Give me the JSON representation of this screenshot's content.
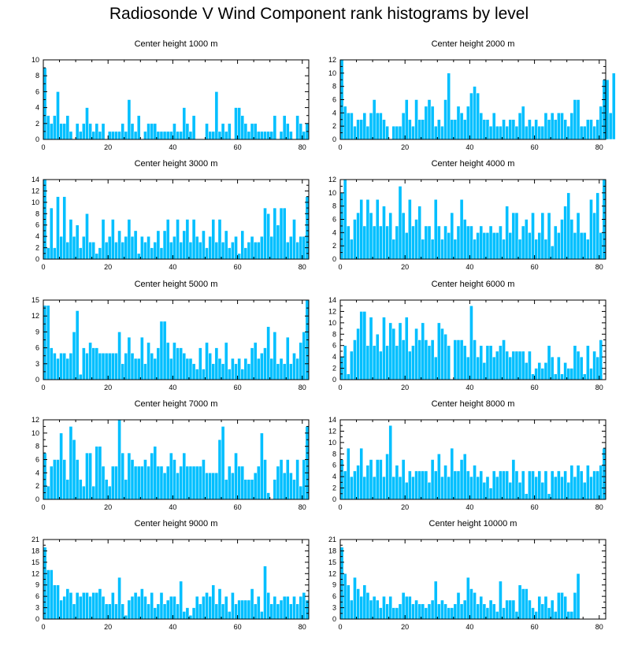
{
  "title": "Radiosonde V Wind Component rank histograms by level",
  "bar_color": "#00bfff",
  "bar_edge_color": "#ffffff",
  "axis_color": "#000000",
  "chart_data": [
    {
      "type": "bar",
      "title": "Center height 1000 m",
      "xlim": [
        0,
        82
      ],
      "ylim": [
        0,
        10
      ],
      "xticks": [
        0,
        20,
        40,
        60,
        80
      ],
      "yticks": [
        0,
        2,
        4,
        6,
        8,
        10
      ],
      "values": [
        9,
        3,
        2,
        3,
        6,
        2,
        2,
        3,
        1,
        0,
        2,
        1,
        2,
        4,
        2,
        1,
        2,
        1,
        2,
        0,
        1,
        1,
        1,
        1,
        2,
        1,
        5,
        2,
        1,
        3,
        0,
        1,
        2,
        2,
        2,
        1,
        1,
        1,
        1,
        1,
        2,
        1,
        1,
        4,
        2,
        1,
        3,
        0,
        0,
        0,
        2,
        1,
        1,
        6,
        1,
        2,
        1,
        2,
        0,
        4,
        4,
        3,
        2,
        1,
        2,
        2,
        1,
        1,
        1,
        1,
        1,
        3,
        0,
        1,
        3,
        2,
        1,
        0,
        3,
        2,
        1,
        2
      ]
    },
    {
      "type": "bar",
      "title": "Center height 2000 m",
      "xlim": [
        0,
        82
      ],
      "ylim": [
        0,
        12
      ],
      "xticks": [
        0,
        20,
        40,
        60,
        80
      ],
      "yticks": [
        0,
        2,
        4,
        6,
        8,
        10,
        12
      ],
      "values": [
        12,
        5,
        4,
        4,
        2,
        3,
        3,
        4,
        2,
        4,
        6,
        4,
        4,
        3,
        2,
        0,
        2,
        2,
        2,
        4,
        6,
        3,
        2,
        6,
        3,
        3,
        5,
        6,
        5,
        2,
        3,
        2,
        6,
        10,
        3,
        3,
        5,
        4,
        3,
        5,
        7,
        8,
        7,
        4,
        3,
        3,
        2,
        4,
        2,
        2,
        3,
        2,
        3,
        3,
        2,
        4,
        5,
        2,
        3,
        2,
        3,
        2,
        2,
        4,
        3,
        4,
        3,
        4,
        4,
        3,
        2,
        4,
        6,
        6,
        2,
        2,
        3,
        3,
        2,
        3,
        5,
        9,
        9,
        4,
        10
      ]
    },
    {
      "type": "bar",
      "title": "Center height 3000 m",
      "xlim": [
        0,
        82
      ],
      "ylim": [
        0,
        14
      ],
      "xticks": [
        0,
        20,
        40,
        60,
        80
      ],
      "yticks": [
        0,
        2,
        4,
        6,
        8,
        10,
        12,
        14
      ],
      "values": [
        14,
        2,
        9,
        2,
        11,
        4,
        11,
        3,
        7,
        4,
        6,
        2,
        4,
        8,
        3,
        3,
        1,
        2,
        7,
        3,
        4,
        7,
        3,
        5,
        3,
        4,
        7,
        4,
        5,
        1,
        4,
        3,
        4,
        2,
        3,
        5,
        2,
        5,
        7,
        3,
        4,
        7,
        3,
        5,
        7,
        3,
        7,
        4,
        3,
        5,
        2,
        4,
        7,
        3,
        7,
        3,
        5,
        2,
        3,
        4,
        1,
        5,
        2,
        3,
        4,
        3,
        3,
        4,
        9,
        8,
        4,
        9,
        6,
        9,
        9,
        3,
        4,
        7,
        3,
        4,
        4,
        11
      ]
    },
    {
      "type": "bar",
      "title": "Center height 4000 m",
      "xlim": [
        0,
        82
      ],
      "ylim": [
        0,
        12
      ],
      "xticks": [
        0,
        20,
        40,
        60,
        80
      ],
      "yticks": [
        0,
        2,
        4,
        6,
        8,
        10,
        12
      ],
      "values": [
        10,
        12,
        5,
        3,
        6,
        7,
        9,
        5,
        9,
        7,
        5,
        9,
        5,
        8,
        5,
        7,
        3,
        5,
        11,
        7,
        4,
        9,
        5,
        6,
        8,
        3,
        5,
        5,
        3,
        9,
        5,
        3,
        5,
        4,
        7,
        3,
        5,
        9,
        6,
        5,
        5,
        3,
        4,
        5,
        4,
        4,
        5,
        4,
        4,
        5,
        3,
        8,
        4,
        7,
        7,
        3,
        5,
        6,
        4,
        7,
        3,
        4,
        7,
        3,
        7,
        2,
        5,
        4,
        6,
        8,
        10,
        6,
        4,
        7,
        4,
        4,
        3,
        9,
        7,
        10,
        4,
        12
      ]
    },
    {
      "type": "bar",
      "title": "Center height 5000 m",
      "xlim": [
        0,
        82
      ],
      "ylim": [
        0,
        15
      ],
      "xticks": [
        0,
        20,
        40,
        60,
        80
      ],
      "yticks": [
        0,
        3,
        6,
        9,
        12,
        15
      ],
      "values": [
        14,
        14,
        6,
        5,
        4,
        5,
        5,
        4,
        5,
        9,
        13,
        1,
        6,
        5,
        7,
        6,
        6,
        5,
        5,
        5,
        5,
        5,
        5,
        9,
        3,
        5,
        8,
        5,
        4,
        4,
        8,
        3,
        7,
        5,
        4,
        6,
        11,
        11,
        7,
        4,
        7,
        6,
        6,
        5,
        4,
        4,
        3,
        2,
        6,
        2,
        7,
        5,
        3,
        6,
        4,
        3,
        7,
        2,
        4,
        3,
        4,
        2,
        4,
        3,
        6,
        7,
        4,
        5,
        6,
        10,
        4,
        9,
        3,
        4,
        3,
        8,
        3,
        5,
        4,
        7,
        9,
        15
      ]
    },
    {
      "type": "bar",
      "title": "Center height 6000 m",
      "xlim": [
        0,
        82
      ],
      "ylim": [
        0,
        14
      ],
      "xticks": [
        0,
        20,
        40,
        60,
        80
      ],
      "yticks": [
        0,
        2,
        4,
        6,
        8,
        10,
        12,
        14
      ],
      "values": [
        4,
        6,
        1,
        5,
        7,
        9,
        12,
        12,
        6,
        11,
        6,
        8,
        5,
        11,
        6,
        10,
        9,
        6,
        10,
        7,
        11,
        5,
        6,
        9,
        7,
        10,
        7,
        6,
        7,
        4,
        10,
        9,
        8,
        6,
        0,
        7,
        7,
        7,
        6,
        4,
        13,
        7,
        4,
        6,
        3,
        6,
        6,
        4,
        5,
        6,
        7,
        5,
        4,
        5,
        5,
        5,
        5,
        3,
        5,
        1,
        2,
        3,
        2,
        3,
        6,
        4,
        1,
        4,
        1,
        3,
        2,
        2,
        6,
        5,
        4,
        1,
        6,
        2,
        5,
        4,
        7
      ]
    },
    {
      "type": "bar",
      "title": "Center height 7000 m",
      "xlim": [
        0,
        82
      ],
      "ylim": [
        0,
        12
      ],
      "xticks": [
        0,
        20,
        40,
        60,
        80
      ],
      "yticks": [
        0,
        2,
        4,
        6,
        8,
        10,
        12
      ],
      "values": [
        7,
        2,
        5,
        6,
        6,
        10,
        6,
        3,
        11,
        9,
        6,
        3,
        2,
        7,
        7,
        2,
        8,
        8,
        5,
        3,
        2,
        5,
        5,
        12,
        7,
        3,
        7,
        6,
        5,
        5,
        5,
        6,
        5,
        7,
        8,
        5,
        5,
        4,
        5,
        7,
        6,
        4,
        5,
        7,
        5,
        5,
        5,
        5,
        5,
        6,
        4,
        4,
        4,
        4,
        9,
        11,
        3,
        5,
        4,
        7,
        5,
        5,
        3,
        3,
        3,
        4,
        5,
        10,
        6,
        1,
        0,
        3,
        5,
        6,
        4,
        6,
        4,
        3,
        6,
        2,
        6,
        11
      ]
    },
    {
      "type": "bar",
      "title": "Center height 8000 m",
      "xlim": [
        0,
        82
      ],
      "ylim": [
        0,
        14
      ],
      "xticks": [
        0,
        20,
        40,
        60,
        80
      ],
      "yticks": [
        0,
        2,
        4,
        6,
        8,
        10,
        12,
        14
      ],
      "values": [
        7,
        5,
        9,
        4,
        5,
        6,
        9,
        4,
        6,
        7,
        4,
        7,
        7,
        4,
        8,
        13,
        4,
        6,
        4,
        7,
        3,
        5,
        4,
        5,
        5,
        5,
        5,
        3,
        7,
        5,
        8,
        4,
        6,
        4,
        9,
        5,
        5,
        7,
        8,
        5,
        4,
        6,
        4,
        5,
        3,
        4,
        2,
        5,
        4,
        5,
        5,
        5,
        3,
        7,
        5,
        3,
        5,
        1,
        5,
        5,
        4,
        5,
        3,
        5,
        1,
        5,
        4,
        5,
        4,
        5,
        3,
        6,
        4,
        6,
        5,
        3,
        6,
        4,
        5,
        5,
        6,
        9
      ]
    },
    {
      "type": "bar",
      "title": "Center height 9000 m",
      "xlim": [
        0,
        82
      ],
      "ylim": [
        0,
        21
      ],
      "xticks": [
        0,
        20,
        40,
        60,
        80
      ],
      "yticks": [
        0,
        3,
        6,
        9,
        12,
        15,
        18,
        21
      ],
      "values": [
        19,
        13,
        13,
        9,
        9,
        5,
        6,
        8,
        7,
        4,
        7,
        6,
        7,
        7,
        6,
        7,
        7,
        8,
        6,
        4,
        4,
        7,
        4,
        11,
        4,
        1,
        5,
        6,
        7,
        6,
        8,
        6,
        4,
        7,
        3,
        4,
        7,
        4,
        5,
        6,
        6,
        4,
        10,
        2,
        3,
        1,
        3,
        6,
        4,
        6,
        7,
        6,
        9,
        4,
        8,
        4,
        6,
        2,
        7,
        4,
        5,
        5,
        5,
        5,
        8,
        4,
        6,
        2,
        14,
        7,
        4,
        6,
        4,
        5,
        6,
        6,
        4,
        6,
        4,
        6,
        7,
        5
      ]
    },
    {
      "type": "bar",
      "title": "Center height 10000 m",
      "xlim": [
        0,
        82
      ],
      "ylim": [
        0,
        21
      ],
      "xticks": [
        0,
        20,
        40,
        60,
        80
      ],
      "yticks": [
        0,
        3,
        6,
        9,
        12,
        15,
        18,
        21
      ],
      "values": [
        19,
        12,
        9,
        5,
        11,
        8,
        6,
        9,
        7,
        5,
        6,
        5,
        3,
        6,
        4,
        6,
        3,
        3,
        4,
        7,
        6,
        6,
        4,
        5,
        4,
        4,
        3,
        4,
        5,
        10,
        4,
        5,
        4,
        3,
        3,
        4,
        7,
        4,
        5,
        11,
        8,
        7,
        4,
        6,
        4,
        3,
        5,
        4,
        2,
        10,
        3,
        5,
        5,
        5,
        2,
        9,
        8,
        8,
        5,
        3,
        2,
        6,
        4,
        6,
        3,
        5,
        2,
        7,
        7,
        6,
        2,
        2,
        7,
        12
      ]
    }
  ]
}
